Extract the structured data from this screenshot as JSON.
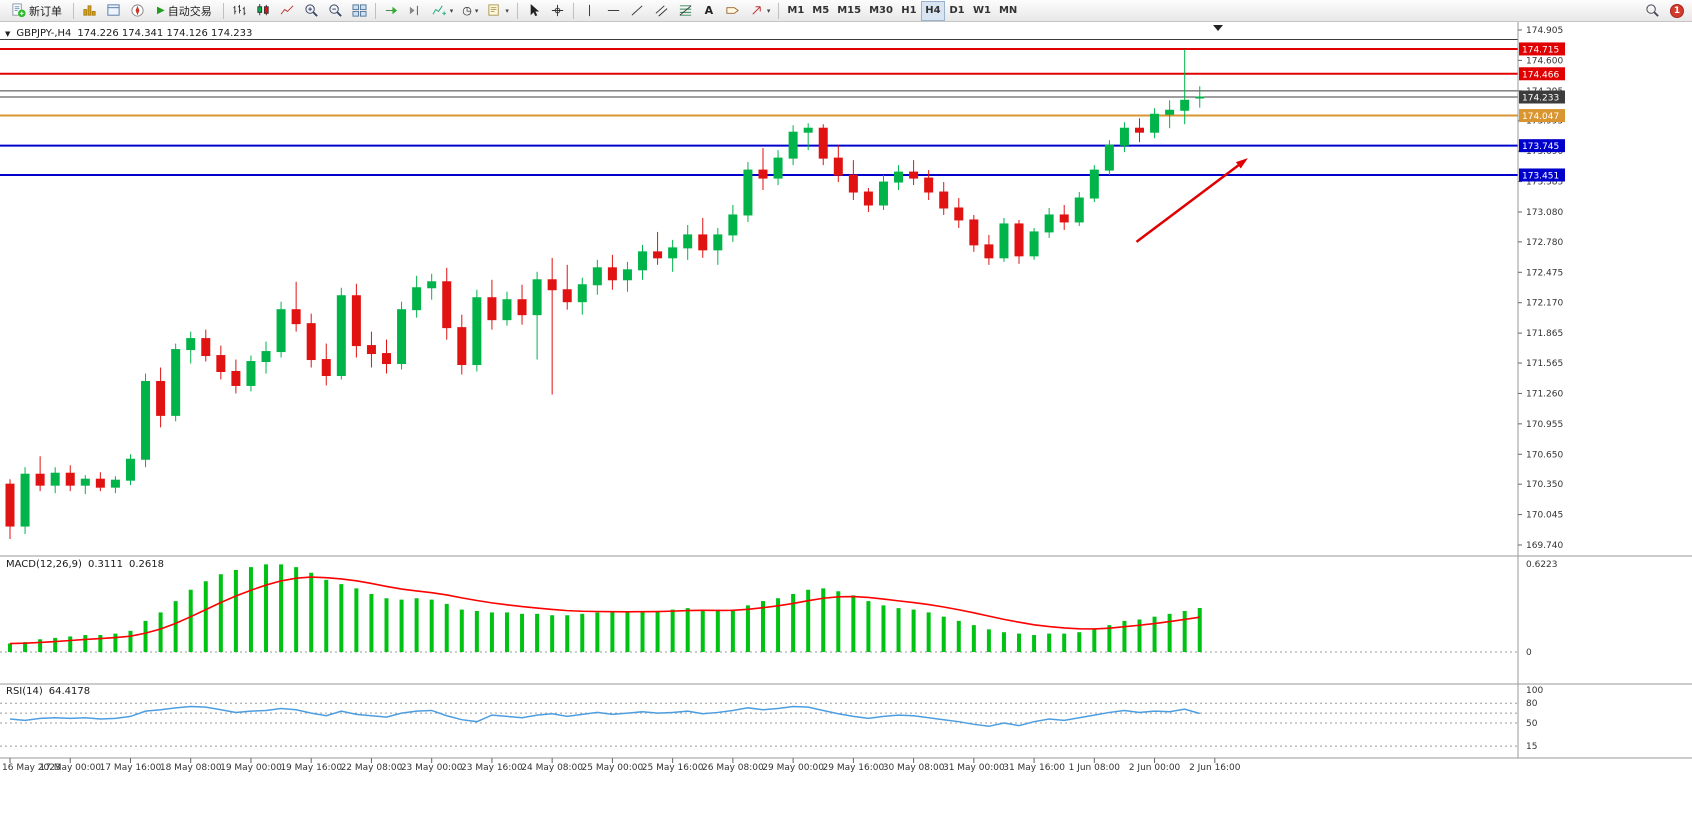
{
  "toolbar": {
    "new_order": "新订单",
    "auto_trading": "自动交易",
    "timeframes": [
      "M1",
      "M5",
      "M15",
      "M30",
      "H1",
      "H4",
      "D1",
      "W1",
      "MN"
    ],
    "active_timeframe": "H4",
    "notification_count": "1"
  },
  "icons": {
    "caret": "▾",
    "play": "▶",
    "collapse_triangle": "▼",
    "clock": "◷",
    "text_tool": "A"
  },
  "chart": {
    "symbol": "GBPJPY-,H4",
    "ohlc_text": "174.226 174.341 174.126 174.233"
  },
  "indicators": {
    "macd_label": "MACD(12,26,9)",
    "macd_value": "0.3111",
    "macd_signal_value": "0.2618",
    "macd_scale_max": "0.6223",
    "macd_scale_zero": "0",
    "rsi_label": "RSI(14)",
    "rsi_value": "64.4178",
    "rsi_scale": [
      "100",
      "80",
      "50",
      "15"
    ]
  },
  "price_axis": {
    "labels": [
      "174.905",
      "174.600",
      "174.295",
      "173.995",
      "173.690",
      "173.385",
      "173.080",
      "172.780",
      "172.475",
      "172.170",
      "171.865",
      "171.565",
      "171.260",
      "170.955",
      "170.650",
      "170.350",
      "170.045",
      "169.740"
    ]
  },
  "time_axis": {
    "labels": [
      "16 May 2023",
      "17 May 00:00",
      "17 May 16:00",
      "18 May 08:00",
      "19 May 00:00",
      "19 May 16:00",
      "22 May 08:00",
      "23 May 00:00",
      "23 May 16:00",
      "24 May 08:00",
      "25 May 00:00",
      "25 May 16:00",
      "26 May 08:00",
      "29 May 00:00",
      "29 May 16:00",
      "30 May 08:00",
      "31 May 00:00",
      "31 May 16:00",
      "1 Jun 08:00",
      "2 Jun 00:00",
      "2 Jun 16:00"
    ],
    "label_every_n_candles": 4
  },
  "chart_data": {
    "type": "candlestick",
    "symbol": "GBPJPY",
    "timeframe": "H4",
    "title": "GBPJPY-,H4 174.226 174.341 174.126 174.233",
    "price_range": [
      169.74,
      174.905
    ],
    "current_price": 174.233,
    "current_price_label": "174.233",
    "colors": {
      "up": "#00b44a",
      "down": "#e01212",
      "macd": "#00c213",
      "signal": "#ff0000",
      "rsi": "#4d9ee0",
      "hline_red": "#e00000",
      "hline_blue": "#0000cd",
      "hline_orange": "#d9952f",
      "current": "#3c3c3c"
    },
    "hlines": [
      {
        "price": 174.81,
        "label": null,
        "color": "#3c3c3c",
        "width": 1
      },
      {
        "price": 174.715,
        "label": "174.715",
        "color": "#e00000",
        "width": 2
      },
      {
        "price": 174.466,
        "label": "174.466",
        "color": "#e00000",
        "width": 2
      },
      {
        "price": 174.295,
        "label": null,
        "color": "#3c3c3c",
        "width": 1
      },
      {
        "price": 174.047,
        "label": "174.047",
        "color": "#d9952f",
        "width": 2
      },
      {
        "price": 173.745,
        "label": "173.745",
        "color": "#0000cd",
        "width": 2
      },
      {
        "price": 173.451,
        "label": "173.451",
        "color": "#0000cd",
        "width": 2
      }
    ],
    "candles_ohlc": [
      [
        170.35,
        170.4,
        169.8,
        169.93
      ],
      [
        169.93,
        170.52,
        169.85,
        170.45
      ],
      [
        170.45,
        170.63,
        170.28,
        170.34
      ],
      [
        170.34,
        170.52,
        170.26,
        170.46
      ],
      [
        170.46,
        170.54,
        170.28,
        170.34
      ],
      [
        170.34,
        170.44,
        170.25,
        170.4
      ],
      [
        170.4,
        170.47,
        170.28,
        170.32
      ],
      [
        170.32,
        170.43,
        170.26,
        170.39
      ],
      [
        170.39,
        170.65,
        170.34,
        170.6
      ],
      [
        170.6,
        171.46,
        170.52,
        171.38
      ],
      [
        171.38,
        171.52,
        170.92,
        171.04
      ],
      [
        171.04,
        171.76,
        170.98,
        171.7
      ],
      [
        171.7,
        171.88,
        171.56,
        171.81
      ],
      [
        171.81,
        171.9,
        171.58,
        171.64
      ],
      [
        171.64,
        171.74,
        171.4,
        171.48
      ],
      [
        171.48,
        171.6,
        171.26,
        171.34
      ],
      [
        171.34,
        171.64,
        171.28,
        171.58
      ],
      [
        171.58,
        171.78,
        171.46,
        171.68
      ],
      [
        171.68,
        172.18,
        171.62,
        172.1
      ],
      [
        172.1,
        172.38,
        171.88,
        171.96
      ],
      [
        171.96,
        172.06,
        171.52,
        171.6
      ],
      [
        171.6,
        171.76,
        171.34,
        171.44
      ],
      [
        171.44,
        172.32,
        171.4,
        172.24
      ],
      [
        172.24,
        172.36,
        171.62,
        171.74
      ],
      [
        171.74,
        171.88,
        171.52,
        171.66
      ],
      [
        171.66,
        171.8,
        171.46,
        171.56
      ],
      [
        171.56,
        172.18,
        171.5,
        172.1
      ],
      [
        172.1,
        172.44,
        172.02,
        172.32
      ],
      [
        172.32,
        172.46,
        172.2,
        172.38
      ],
      [
        172.38,
        172.52,
        171.8,
        171.92
      ],
      [
        171.92,
        172.05,
        171.45,
        171.55
      ],
      [
        171.55,
        172.3,
        171.48,
        172.22
      ],
      [
        172.22,
        172.4,
        171.9,
        172.0
      ],
      [
        172.0,
        172.28,
        171.94,
        172.2
      ],
      [
        172.2,
        172.35,
        171.95,
        172.05
      ],
      [
        172.05,
        172.48,
        171.6,
        172.4
      ],
      [
        172.4,
        172.62,
        171.25,
        172.3
      ],
      [
        172.3,
        172.55,
        172.1,
        172.18
      ],
      [
        172.18,
        172.42,
        172.05,
        172.35
      ],
      [
        172.35,
        172.6,
        172.25,
        172.52
      ],
      [
        172.52,
        172.65,
        172.3,
        172.4
      ],
      [
        172.4,
        172.58,
        172.28,
        172.5
      ],
      [
        172.5,
        172.75,
        172.4,
        172.68
      ],
      [
        172.68,
        172.88,
        172.55,
        172.62
      ],
      [
        172.62,
        172.8,
        172.48,
        172.72
      ],
      [
        172.72,
        172.95,
        172.6,
        172.85
      ],
      [
        172.85,
        173.02,
        172.62,
        172.7
      ],
      [
        172.7,
        172.92,
        172.55,
        172.85
      ],
      [
        172.85,
        173.15,
        172.78,
        173.05
      ],
      [
        173.05,
        173.58,
        172.98,
        173.5
      ],
      [
        173.5,
        173.72,
        173.3,
        173.42
      ],
      [
        173.42,
        173.7,
        173.35,
        173.62
      ],
      [
        173.62,
        173.95,
        173.55,
        173.88
      ],
      [
        173.88,
        173.97,
        173.7,
        173.92
      ],
      [
        173.92,
        173.96,
        173.55,
        173.62
      ],
      [
        173.62,
        173.75,
        173.38,
        173.45
      ],
      [
        173.45,
        173.6,
        173.2,
        173.28
      ],
      [
        173.28,
        173.32,
        173.08,
        173.15
      ],
      [
        173.15,
        173.45,
        173.1,
        173.38
      ],
      [
        173.38,
        173.55,
        173.3,
        173.48
      ],
      [
        173.48,
        173.6,
        173.35,
        173.42
      ],
      [
        173.42,
        173.5,
        173.2,
        173.28
      ],
      [
        173.28,
        173.38,
        173.05,
        173.12
      ],
      [
        173.12,
        173.22,
        172.92,
        173.0
      ],
      [
        173.0,
        173.05,
        172.68,
        172.75
      ],
      [
        172.75,
        172.85,
        172.55,
        172.62
      ],
      [
        172.62,
        173.02,
        172.58,
        172.96
      ],
      [
        172.96,
        173.0,
        172.56,
        172.64
      ],
      [
        172.64,
        172.92,
        172.6,
        172.88
      ],
      [
        172.88,
        173.12,
        172.82,
        173.05
      ],
      [
        173.05,
        173.15,
        172.9,
        172.98
      ],
      [
        172.98,
        173.28,
        172.94,
        173.22
      ],
      [
        173.22,
        173.55,
        173.18,
        173.5
      ],
      [
        173.5,
        173.8,
        173.45,
        173.75
      ],
      [
        173.75,
        173.98,
        173.68,
        173.92
      ],
      [
        173.92,
        174.02,
        173.78,
        173.88
      ],
      [
        173.88,
        174.12,
        173.82,
        174.06
      ],
      [
        174.06,
        174.2,
        173.92,
        174.1
      ],
      [
        174.1,
        174.71,
        173.96,
        174.2
      ],
      [
        174.226,
        174.341,
        174.126,
        174.233
      ]
    ],
    "indicators": {
      "macd": {
        "params": "12,26,9",
        "range": [
          0,
          0.6223
        ],
        "signal_period": 9,
        "values": [
          0.06,
          0.07,
          0.09,
          0.1,
          0.11,
          0.12,
          0.12,
          0.13,
          0.15,
          0.22,
          0.28,
          0.36,
          0.44,
          0.5,
          0.55,
          0.58,
          0.6,
          0.62,
          0.62,
          0.6,
          0.56,
          0.51,
          0.48,
          0.45,
          0.41,
          0.38,
          0.37,
          0.38,
          0.37,
          0.34,
          0.3,
          0.29,
          0.28,
          0.28,
          0.27,
          0.27,
          0.26,
          0.26,
          0.27,
          0.28,
          0.28,
          0.28,
          0.29,
          0.29,
          0.3,
          0.31,
          0.3,
          0.29,
          0.3,
          0.33,
          0.36,
          0.38,
          0.41,
          0.44,
          0.45,
          0.43,
          0.4,
          0.36,
          0.33,
          0.31,
          0.3,
          0.28,
          0.25,
          0.22,
          0.19,
          0.16,
          0.14,
          0.13,
          0.12,
          0.13,
          0.13,
          0.14,
          0.16,
          0.19,
          0.22,
          0.23,
          0.25,
          0.27,
          0.29,
          0.3111
        ]
      },
      "rsi": {
        "params": "14",
        "range": [
          0,
          100
        ],
        "levels": [
          80,
          65,
          50,
          15
        ],
        "values": [
          56,
          54,
          57,
          58,
          57,
          58,
          56,
          57,
          60,
          68,
          70,
          73,
          75,
          74,
          70,
          66,
          68,
          69,
          72,
          70,
          65,
          61,
          68,
          63,
          61,
          59,
          65,
          68,
          69,
          61,
          55,
          52,
          62,
          60,
          58,
          62,
          64,
          60,
          63,
          66,
          63,
          65,
          67,
          65,
          66,
          68,
          64,
          66,
          69,
          73,
          70,
          72,
          75,
          74,
          69,
          64,
          60,
          57,
          60,
          62,
          61,
          58,
          55,
          52,
          48,
          45,
          50,
          46,
          52,
          56,
          54,
          58,
          62,
          66,
          69,
          66,
          68,
          67,
          71,
          64.4178
        ]
      }
    },
    "annotations": [
      {
        "type": "arrow",
        "color": "#e00000",
        "from": [
          74.8,
          172.78
        ],
        "to": [
          82.2,
          173.62
        ]
      }
    ]
  }
}
